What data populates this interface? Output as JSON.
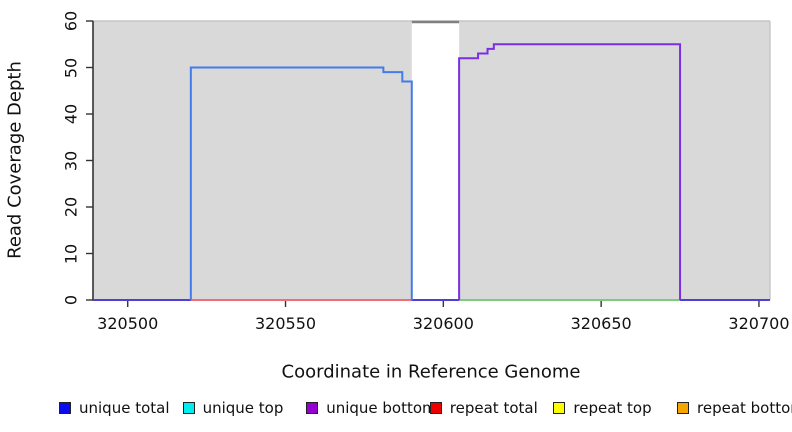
{
  "chart_data": {
    "type": "line",
    "subtype": "step-coverage-plot",
    "title": "",
    "xlabel": "Coordinate in Reference Genome",
    "ylabel": "Read Coverage Depth",
    "xlim": [
      320489,
      320703.5
    ],
    "ylim": [
      0,
      60
    ],
    "x_ticks": [
      320500,
      320550,
      320600,
      320650,
      320700
    ],
    "y_ticks": [
      0,
      10,
      20,
      30,
      40,
      50,
      60
    ],
    "grid": false,
    "panel_bg": "#d9d9d9",
    "panel_border_color": "#c6c6c6",
    "axis_color": "#333333",
    "masked_region": {
      "from": 320590,
      "to": 320605,
      "fill": "#ffffff",
      "cap_y": 60,
      "cap_color": "#808080"
    },
    "series": [
      {
        "name": "unique total",
        "color": "#447bec",
        "points": [
          [
            320520,
            0
          ],
          [
            320520,
            50
          ],
          [
            320581,
            50
          ],
          [
            320581,
            49
          ],
          [
            320587,
            49
          ],
          [
            320587,
            47
          ],
          [
            320590,
            47
          ],
          [
            320590,
            0
          ]
        ]
      },
      {
        "name": "unique bottom",
        "color": "#7b2ee2",
        "points": [
          [
            320605,
            0
          ],
          [
            320605,
            52
          ],
          [
            320611,
            52
          ],
          [
            320611,
            53
          ],
          [
            320614,
            53
          ],
          [
            320614,
            54
          ],
          [
            320616,
            54
          ],
          [
            320616,
            55
          ],
          [
            320675,
            55
          ],
          [
            320675,
            0
          ]
        ]
      }
    ],
    "baseline_segments": [
      {
        "name": "unique-overlap-left",
        "from": 320489,
        "to": 320520,
        "y": 0,
        "color": "#4f3fd8"
      },
      {
        "name": "repeat-total-zero",
        "from": 320520,
        "to": 320590,
        "y": 0,
        "color": "#ef6d7a"
      },
      {
        "name": "unique-overlap-gap",
        "from": 320590,
        "to": 320605,
        "y": 0,
        "color": "#4f3fd8"
      },
      {
        "name": "repeat-region-zero",
        "from": 320605,
        "to": 320675,
        "y": 0,
        "color": "#7ccc7c"
      },
      {
        "name": "unique-overlap-right",
        "from": 320675,
        "to": 320703.5,
        "y": 0,
        "color": "#4f3fd8"
      }
    ],
    "legend": {
      "position": "bottom",
      "items": [
        {
          "label": "unique total",
          "color": "#0b0bee"
        },
        {
          "label": "unique top",
          "color": "#00eeee"
        },
        {
          "label": "unique bottom",
          "color": "#9400d3"
        },
        {
          "label": "repeat total",
          "color": "#ee0000"
        },
        {
          "label": "repeat top",
          "color": "#ffff00"
        },
        {
          "label": "repeat bottom",
          "color": "#f5a400"
        }
      ]
    }
  }
}
